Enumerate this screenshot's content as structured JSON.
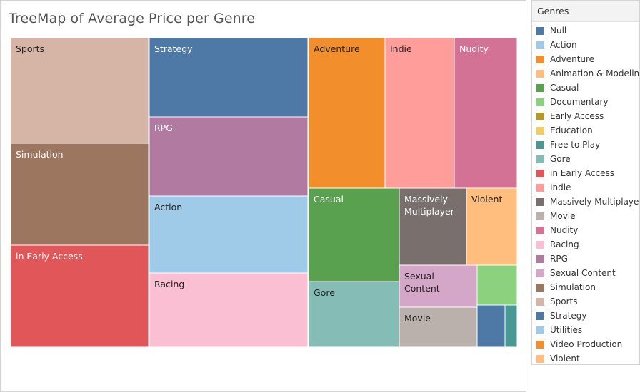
{
  "chart_data": {
    "type": "treemap",
    "title": "TreeMap of Average Price per Genre",
    "legend_title": "Genres",
    "legend_position": "right",
    "legend": [
      {
        "name": "Null",
        "color": "#4e79a7"
      },
      {
        "name": "Action",
        "color": "#a0cbe8"
      },
      {
        "name": "Adventure",
        "color": "#f28e2b"
      },
      {
        "name": "Animation & Modeling",
        "color": "#ffbe7d"
      },
      {
        "name": "Casual",
        "color": "#59a14f"
      },
      {
        "name": "Documentary",
        "color": "#8cd17d"
      },
      {
        "name": "Early Access",
        "color": "#b6992d"
      },
      {
        "name": "Education",
        "color": "#f1ce63"
      },
      {
        "name": "Free to Play",
        "color": "#499894"
      },
      {
        "name": "Gore",
        "color": "#86bcb6"
      },
      {
        "name": "in Early Access",
        "color": "#e15759"
      },
      {
        "name": "Indie",
        "color": "#ff9d9a"
      },
      {
        "name": "Massively Multiplayer",
        "color": "#79706e"
      },
      {
        "name": "Movie",
        "color": "#bab0ac"
      },
      {
        "name": "Nudity",
        "color": "#d37295"
      },
      {
        "name": "Racing",
        "color": "#fabfd2"
      },
      {
        "name": "RPG",
        "color": "#b07aa1"
      },
      {
        "name": "Sexual Content",
        "color": "#d4a6c8"
      },
      {
        "name": "Simulation",
        "color": "#9d7660"
      },
      {
        "name": "Sports",
        "color": "#d7b5a6"
      },
      {
        "name": "Strategy",
        "color": "#4e79a7"
      },
      {
        "name": "Utilities",
        "color": "#a0cbe8"
      },
      {
        "name": "Video Production",
        "color": "#f28e2b"
      },
      {
        "name": "Violent",
        "color": "#ffbe7d"
      }
    ],
    "tiles": [
      {
        "label": "Sports",
        "value": 21.0,
        "color": "#d7b5a6",
        "text_color": "#222222"
      },
      {
        "label": "Simulation",
        "value": 20.8,
        "color": "#9d7660",
        "text_color": "#ffffff"
      },
      {
        "label": "in Early Access",
        "value": 20.6,
        "color": "#e15759",
        "text_color": "#ffffff"
      },
      {
        "label": "Strategy",
        "value": 15.6,
        "color": "#4e79a7",
        "text_color": "#ffffff"
      },
      {
        "label": "RPG",
        "value": 15.6,
        "color": "#b07aa1",
        "text_color": "#ffffff"
      },
      {
        "label": "Action",
        "value": 15.2,
        "color": "#a0cbe8",
        "text_color": "#222222"
      },
      {
        "label": "Racing",
        "value": 14.8,
        "color": "#fabfd2",
        "text_color": "#222222"
      },
      {
        "label": "Adventure",
        "value": 12.9,
        "color": "#f28e2b",
        "text_color": "#222222"
      },
      {
        "label": "Indie",
        "value": 12.6,
        "color": "#ff9d9a",
        "text_color": "#222222"
      },
      {
        "label": "Nudity",
        "value": 10.5,
        "color": "#d37295",
        "text_color": "#ffffff"
      },
      {
        "label": "Casual",
        "value": 10.6,
        "color": "#59a14f",
        "text_color": "#ffffff"
      },
      {
        "label": "Gore",
        "value": 7.6,
        "color": "#86bcb6",
        "text_color": "#222222"
      },
      {
        "label": "Massively Multiplayer",
        "value": 7.6,
        "color": "#79706e",
        "text_color": "#ffffff"
      },
      {
        "label": "Violent",
        "value": 5.4,
        "color": "#ffbe7d",
        "text_color": "#222222"
      },
      {
        "label": "Sexual Content",
        "value": 5.5,
        "color": "#d4a6c8",
        "text_color": "#222222"
      },
      {
        "label": "Movie",
        "value": 4.9,
        "color": "#bab0ac",
        "text_color": "#222222"
      },
      {
        "label": "",
        "value": 2.8,
        "color": "#8cd17d",
        "text_color": "#222222"
      },
      {
        "label": "",
        "value": 1.7,
        "color": "#4e79a7",
        "text_color": "#ffffff"
      },
      {
        "label": "",
        "value": 0.7,
        "color": "#499894",
        "text_color": "#ffffff"
      }
    ]
  }
}
